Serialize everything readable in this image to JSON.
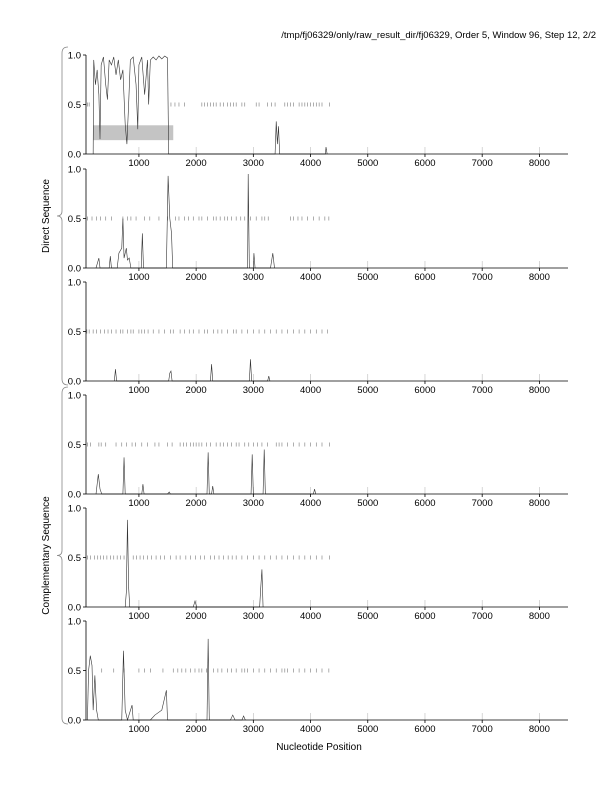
{
  "chart_data": {
    "type": "line",
    "title": "/tmp/fj06329/only/raw_result_dir/fj06329, Order 5, Window 96, Step 12, 2/2",
    "xlabel": "Nucleotide Position",
    "group_labels": [
      "Direct Sequence",
      "Complementary Sequence"
    ],
    "xlim": [
      75,
      8500
    ],
    "ylim": [
      0,
      1
    ],
    "x_ticks": [
      "1000",
      "2000",
      "3000",
      "4000",
      "5000",
      "6000",
      "7000",
      "8000"
    ],
    "y_ticks": [
      "0.0",
      "0.5",
      "1.0"
    ],
    "panels": [
      {
        "group": "Direct Sequence",
        "frame": 1,
        "points": [
          [
            200,
            0
          ],
          [
            210,
            0.95
          ],
          [
            240,
            0.7
          ],
          [
            270,
            0.85
          ],
          [
            300,
            0.6
          ],
          [
            320,
            0.15
          ],
          [
            340,
            0.9
          ],
          [
            380,
            0.98
          ],
          [
            420,
            0.7
          ],
          [
            450,
            0.55
          ],
          [
            480,
            0.95
          ],
          [
            520,
            0.9
          ],
          [
            560,
            0.98
          ],
          [
            600,
            0.8
          ],
          [
            640,
            0.95
          ],
          [
            680,
            0.75
          ],
          [
            720,
            0.85
          ],
          [
            760,
            0.3
          ],
          [
            790,
            0.1
          ],
          [
            820,
            0.5
          ],
          [
            850,
            0.95
          ],
          [
            900,
            0.98
          ],
          [
            950,
            0.7
          ],
          [
            980,
            0.25
          ],
          [
            1000,
            0.9
          ],
          [
            1050,
            0.98
          ],
          [
            1100,
            0.6
          ],
          [
            1150,
            0.95
          ],
          [
            1170,
            0.5
          ],
          [
            1200,
            0.95
          ],
          [
            1250,
            0.98
          ],
          [
            1300,
            0.95
          ],
          [
            1350,
            0.99
          ],
          [
            1400,
            0.96
          ],
          [
            1450,
            0.99
          ],
          [
            1500,
            0.97
          ],
          [
            1520,
            0
          ],
          [
            3380,
            0
          ],
          [
            3400,
            0.33
          ],
          [
            3420,
            0.1
          ],
          [
            3440,
            0.28
          ],
          [
            3460,
            0
          ],
          [
            4260,
            0
          ],
          [
            4270,
            0.07
          ],
          [
            4290,
            0
          ]
        ],
        "orf_ticks": [
          100,
          130,
          1560,
          1630,
          1700,
          1800,
          2100,
          2150,
          2200,
          2250,
          2300,
          2350,
          2420,
          2480,
          2550,
          2600,
          2650,
          2700,
          2800,
          2850,
          3050,
          3100,
          3250,
          3320,
          3380,
          3550,
          3600,
          3650,
          3700,
          3800,
          3850,
          3900,
          3950,
          4000,
          4050,
          4100,
          4150,
          4200,
          4330
        ],
        "shaded_region": {
          "x": [
            200,
            1600
          ],
          "y": [
            0.14,
            0.29
          ]
        }
      },
      {
        "group": "Direct Sequence",
        "frame": 2,
        "points": [
          [
            250,
            0
          ],
          [
            300,
            0.1
          ],
          [
            320,
            0
          ],
          [
            480,
            0
          ],
          [
            500,
            0.12
          ],
          [
            520,
            0
          ],
          [
            620,
            0
          ],
          [
            650,
            0.15
          ],
          [
            700,
            0.2
          ],
          [
            720,
            0.5
          ],
          [
            740,
            0.1
          ],
          [
            780,
            0.2
          ],
          [
            800,
            0.08
          ],
          [
            830,
            0.1
          ],
          [
            860,
            0
          ],
          [
            1040,
            0
          ],
          [
            1060,
            0.35
          ],
          [
            1080,
            0
          ],
          [
            1480,
            0
          ],
          [
            1510,
            0.93
          ],
          [
            1540,
            0.5
          ],
          [
            1570,
            0.35
          ],
          [
            1590,
            0
          ],
          [
            2900,
            0
          ],
          [
            2910,
            0.95
          ],
          [
            2930,
            0
          ],
          [
            3000,
            0
          ],
          [
            3010,
            0.15
          ],
          [
            3030,
            0
          ],
          [
            3300,
            0
          ],
          [
            3340,
            0.15
          ],
          [
            3370,
            0
          ]
        ],
        "orf_ticks": [
          100,
          180,
          260,
          330,
          420,
          520,
          720,
          800,
          860,
          950,
          1100,
          1190,
          1350,
          1500,
          1640,
          1700,
          1800,
          1870,
          1950,
          2050,
          2100,
          2200,
          2300,
          2350,
          2420,
          2500,
          2550,
          2620,
          2700,
          2780,
          2850,
          2950,
          3050,
          3150,
          3200,
          3260,
          3650,
          3700,
          3780,
          3850,
          3950,
          4050,
          4150,
          4250,
          4320
        ]
      },
      {
        "group": "Direct Sequence",
        "frame": 3,
        "points": [
          [
            570,
            0
          ],
          [
            590,
            0.12
          ],
          [
            610,
            0
          ],
          [
            1520,
            0
          ],
          [
            1540,
            0.08
          ],
          [
            1560,
            0.1
          ],
          [
            1580,
            0
          ],
          [
            2250,
            0
          ],
          [
            2270,
            0.17
          ],
          [
            2290,
            0
          ],
          [
            2930,
            0
          ],
          [
            2950,
            0.22
          ],
          [
            2970,
            0
          ],
          [
            3250,
            0
          ],
          [
            3270,
            0.05
          ],
          [
            3290,
            0
          ]
        ],
        "orf_ticks": [
          90,
          130,
          200,
          260,
          330,
          400,
          460,
          520,
          600,
          680,
          720,
          800,
          860,
          900,
          1000,
          1050,
          1100,
          1160,
          1250,
          1350,
          1450,
          1550,
          1600,
          1720,
          1800,
          1880,
          1950,
          2050,
          2150,
          2200,
          2300,
          2380,
          2450,
          2550,
          2650,
          2700,
          2800,
          2900,
          3000,
          3100,
          3200,
          3300,
          3400,
          3500,
          3600,
          3700,
          3800,
          3900,
          4000,
          4100,
          4200,
          4300
        ]
      },
      {
        "group": "Complementary Sequence",
        "frame": 1,
        "points": [
          [
            250,
            0
          ],
          [
            290,
            0.2
          ],
          [
            320,
            0.05
          ],
          [
            350,
            0
          ],
          [
            720,
            0
          ],
          [
            740,
            0.37
          ],
          [
            760,
            0
          ],
          [
            1050,
            0
          ],
          [
            1070,
            0.1
          ],
          [
            1090,
            0
          ],
          [
            1500,
            0
          ],
          [
            1530,
            0.02
          ],
          [
            1550,
            0
          ],
          [
            2190,
            0
          ],
          [
            2210,
            0.42
          ],
          [
            2230,
            0
          ],
          [
            2270,
            0
          ],
          [
            2290,
            0.08
          ],
          [
            2310,
            0
          ],
          [
            2960,
            0
          ],
          [
            2980,
            0.4
          ],
          [
            3000,
            0
          ],
          [
            3170,
            0
          ],
          [
            3190,
            0.45
          ],
          [
            3210,
            0
          ],
          [
            4050,
            0
          ],
          [
            4070,
            0.05
          ],
          [
            4090,
            0
          ]
        ],
        "orf_ticks": [
          100,
          150,
          300,
          340,
          420,
          600,
          700,
          780,
          880,
          940,
          1050,
          1150,
          1280,
          1350,
          1500,
          1580,
          1720,
          1780,
          1830,
          1900,
          1950,
          2000,
          2050,
          2100,
          2180,
          2250,
          2350,
          2420,
          2480,
          2550,
          2620,
          2700,
          2750,
          2850,
          2920,
          3000,
          3070,
          3150,
          3250,
          3400,
          3450,
          3500,
          3600,
          3700,
          3800,
          3900,
          4000,
          4100,
          4200,
          4330
        ]
      },
      {
        "group": "Complementary Sequence",
        "frame": 2,
        "points": [
          [
            760,
            0
          ],
          [
            780,
            0.15
          ],
          [
            800,
            0.88
          ],
          [
            820,
            0.2
          ],
          [
            840,
            0
          ],
          [
            1950,
            0
          ],
          [
            1980,
            0.06
          ],
          [
            2010,
            0
          ],
          [
            3110,
            0
          ],
          [
            3130,
            0.2
          ],
          [
            3150,
            0.38
          ],
          [
            3170,
            0
          ]
        ],
        "orf_ticks": [
          100,
          150,
          220,
          280,
          330,
          380,
          440,
          500,
          560,
          620,
          680,
          740,
          900,
          960,
          1020,
          1080,
          1150,
          1220,
          1300,
          1380,
          1450,
          1550,
          1650,
          1720,
          1820,
          1900,
          1990,
          2080,
          2150,
          2250,
          2320,
          2400,
          2480,
          2560,
          2630,
          2700,
          2800,
          2900,
          3000,
          3100,
          3200,
          3300,
          3400,
          3500,
          3600,
          3700,
          3800,
          3900,
          4000,
          4100,
          4200,
          4330
        ]
      },
      {
        "group": "Complementary Sequence",
        "frame": 3,
        "points": [
          [
            100,
            0
          ],
          [
            120,
            0.5
          ],
          [
            150,
            0.65
          ],
          [
            180,
            0.55
          ],
          [
            200,
            0.1
          ],
          [
            230,
            0.45
          ],
          [
            260,
            0.1
          ],
          [
            290,
            0
          ],
          [
            700,
            0
          ],
          [
            730,
            0.7
          ],
          [
            760,
            0.1
          ],
          [
            800,
            0
          ],
          [
            880,
            0.15
          ],
          [
            900,
            0
          ],
          [
            1200,
            0
          ],
          [
            1280,
            0.05
          ],
          [
            1400,
            0.1
          ],
          [
            1480,
            0.3
          ],
          [
            1500,
            0
          ],
          [
            2190,
            0
          ],
          [
            2210,
            0.82
          ],
          [
            2230,
            0
          ],
          [
            2600,
            0
          ],
          [
            2640,
            0.05
          ],
          [
            2680,
            0
          ],
          [
            2800,
            0
          ],
          [
            2830,
            0.04
          ],
          [
            2860,
            0
          ]
        ],
        "orf_ticks": [
          350,
          560,
          740,
          1000,
          1100,
          1200,
          1420,
          1600,
          1680,
          1750,
          1820,
          1900,
          1980,
          2050,
          2100,
          2180,
          2300,
          2380,
          2450,
          2550,
          2620,
          2700,
          2800,
          2850,
          2900,
          3000,
          3100,
          3200,
          3300,
          3400,
          3500,
          3550,
          3600,
          3700,
          3800,
          3900,
          4000,
          4100,
          4200,
          4320
        ]
      }
    ]
  }
}
